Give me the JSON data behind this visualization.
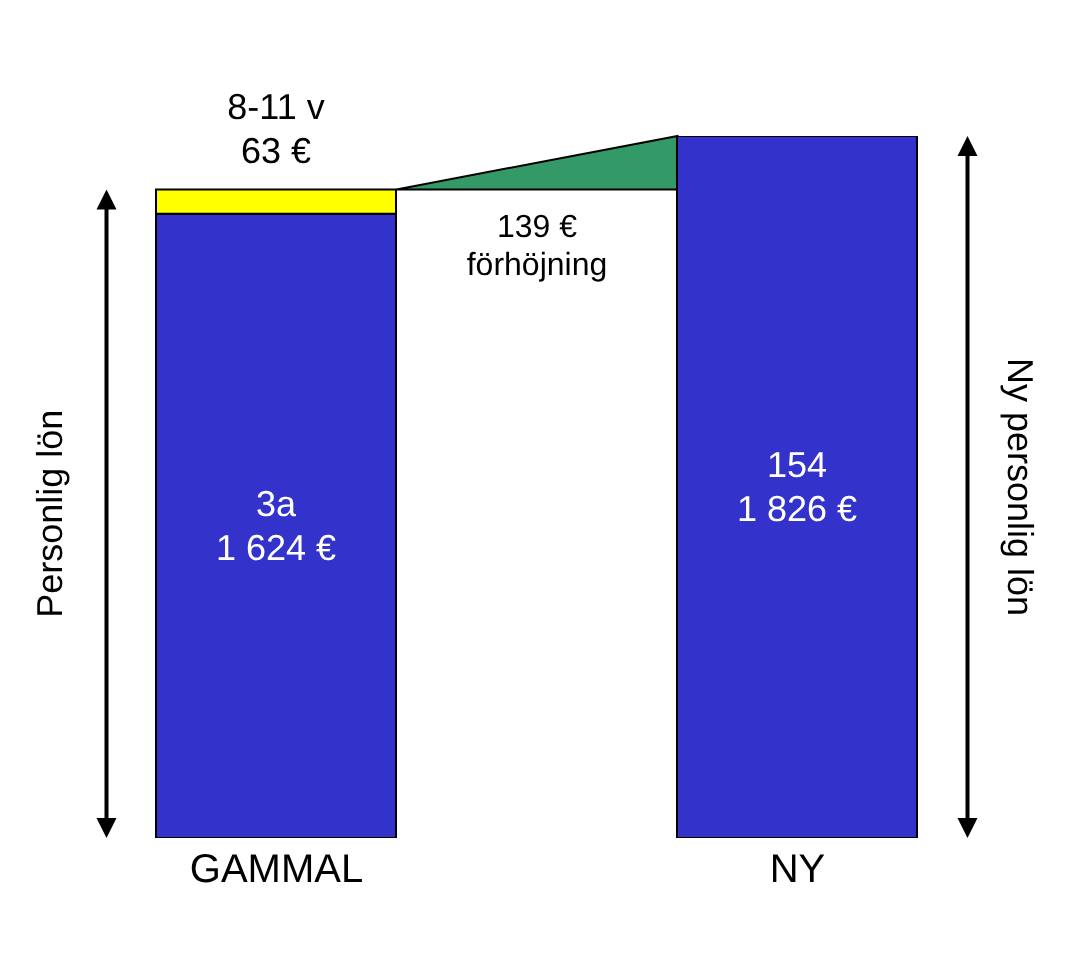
{
  "chart_data": {
    "type": "bar",
    "stacked": true,
    "categories": [
      "GAMMAL",
      "NY"
    ],
    "series": [
      {
        "color": "#3333cc",
        "values": [
          1624,
          1826
        ],
        "value_labels": [
          "3a\n1 624 €",
          "154\n1 826 €"
        ]
      },
      {
        "color": "#ffff00",
        "values": [
          63,
          null
        ],
        "value_labels": [
          "8-11 v\n63 €",
          null
        ]
      }
    ],
    "ylim": [
      0,
      1826
    ],
    "tick_labels": "x",
    "ylabel": "Personlig lön",
    "y2label": "Ny personlig lön",
    "annotations": [
      "139 €\nförhöjning"
    ]
  }
}
